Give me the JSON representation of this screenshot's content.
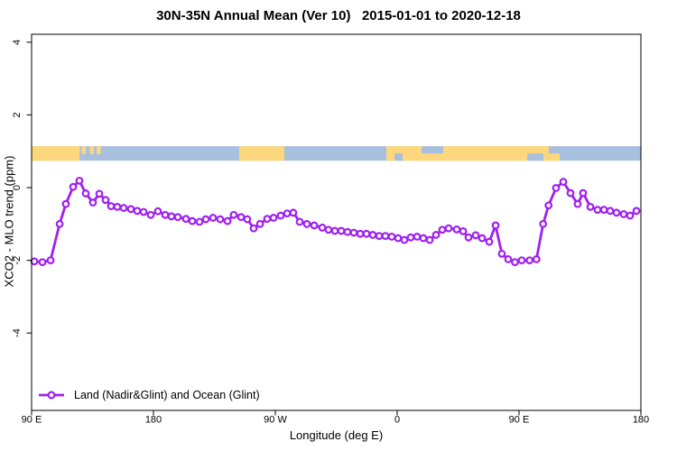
{
  "title": "30N-35N Annual Mean (Ver 10)   2015-01-01 to 2020-12-18",
  "chart_data": {
    "type": "line",
    "title": "30N-35N Annual Mean (Ver 10)   2015-01-01 to 2020-12-18",
    "xlabel": "Longitude (deg E)",
    "ylabel": "XCO2 - MLO trend (ppm)",
    "x_axis": {
      "start_longitude": "90 E",
      "span_degrees": 450,
      "ticks": [
        {
          "offset_deg": 0,
          "label": "90 E"
        },
        {
          "offset_deg": 90,
          "label": "180"
        },
        {
          "offset_deg": 180,
          "label": "90 W"
        },
        {
          "offset_deg": 270,
          "label": "0"
        },
        {
          "offset_deg": 360,
          "label": "90 E"
        },
        {
          "offset_deg": 450,
          "label": "180"
        }
      ]
    },
    "y_axis": {
      "ticks": [
        4,
        2,
        0,
        -2,
        -4
      ],
      "ylim": [
        -6.2,
        4.3
      ],
      "grid": false
    },
    "legend_position": "bottom-left-inside",
    "series": [
      {
        "name": "Land (Nadir&Glint) and Ocean (Glint)",
        "color": "#A020F0",
        "marker": "open-circle",
        "x_offsets_deg": [
          2.0,
          8.0,
          14.0,
          20.7,
          25.3,
          30.7,
          35.3,
          40.0,
          45.3,
          50.0,
          54.7,
          58.7,
          63.3,
          68.0,
          73.3,
          78.0,
          82.7,
          88.0,
          93.3,
          98.7,
          103.3,
          108.0,
          114.0,
          118.7,
          124.0,
          128.7,
          134.0,
          139.3,
          144.7,
          149.3,
          154.7,
          159.3,
          164.0,
          168.7,
          174.0,
          178.7,
          184.0,
          188.7,
          193.3,
          198.0,
          203.3,
          208.7,
          214.7,
          219.3,
          224.0,
          228.7,
          233.3,
          238.0,
          242.7,
          247.3,
          252.0,
          256.7,
          261.3,
          266.0,
          270.7,
          275.3,
          280.0,
          284.7,
          289.3,
          294.0,
          298.7,
          303.3,
          308.0,
          314.0,
          318.7,
          322.7,
          328.0,
          332.7,
          338.0,
          342.7,
          347.3,
          352.0,
          357.0,
          362.0,
          367.8,
          372.9,
          377.8,
          381.8,
          387.3,
          392.7,
          398.0,
          403.3,
          407.3,
          412.7,
          418.0,
          422.7,
          427.3,
          432.0,
          437.3,
          442.0,
          446.7
        ],
        "values_ppm": [
          -2.03,
          -2.05,
          -2.0,
          -1.0,
          -0.45,
          0.02,
          0.19,
          -0.16,
          -0.41,
          -0.17,
          -0.34,
          -0.51,
          -0.53,
          -0.56,
          -0.59,
          -0.64,
          -0.67,
          -0.75,
          -0.65,
          -0.75,
          -0.79,
          -0.81,
          -0.86,
          -0.92,
          -0.94,
          -0.87,
          -0.83,
          -0.87,
          -0.92,
          -0.75,
          -0.81,
          -0.87,
          -1.12,
          -1.0,
          -0.86,
          -0.83,
          -0.77,
          -0.71,
          -0.69,
          -0.94,
          -1.0,
          -1.04,
          -1.1,
          -1.16,
          -1.19,
          -1.19,
          -1.22,
          -1.24,
          -1.27,
          -1.27,
          -1.3,
          -1.33,
          -1.33,
          -1.35,
          -1.39,
          -1.44,
          -1.37,
          -1.35,
          -1.39,
          -1.44,
          -1.3,
          -1.16,
          -1.12,
          -1.15,
          -1.2,
          -1.37,
          -1.31,
          -1.39,
          -1.49,
          -1.04,
          -1.82,
          -1.97,
          -2.05,
          -2.0,
          -2.0,
          -1.97,
          -1.0,
          -0.49,
          -0.01,
          0.16,
          -0.15,
          -0.45,
          -0.15,
          -0.53,
          -0.61,
          -0.61,
          -0.64,
          -0.69,
          -0.73,
          -0.77,
          -0.64
        ]
      }
    ],
    "map_band": {
      "description": "land-ocean strip at 30N-35N drawn near y=1",
      "y_range_ppm": [
        0.74,
        1.14
      ],
      "ocean_color": "#A9BFDE",
      "land_color": "#FCD77C",
      "land_segments_deg": [
        [
          0,
          35.5
        ],
        [
          153.3,
          186.7
        ],
        [
          262,
          390
        ]
      ],
      "island_segments_deg": [
        [
          37,
          40
        ],
        [
          43,
          46
        ],
        [
          48,
          51
        ]
      ],
      "ocean_top_notches_deg": [
        [
          288,
          304
        ],
        [
          382,
          390
        ]
      ],
      "ocean_bottom_notches_deg": [
        [
          268,
          274
        ],
        [
          366,
          378
        ]
      ]
    }
  }
}
